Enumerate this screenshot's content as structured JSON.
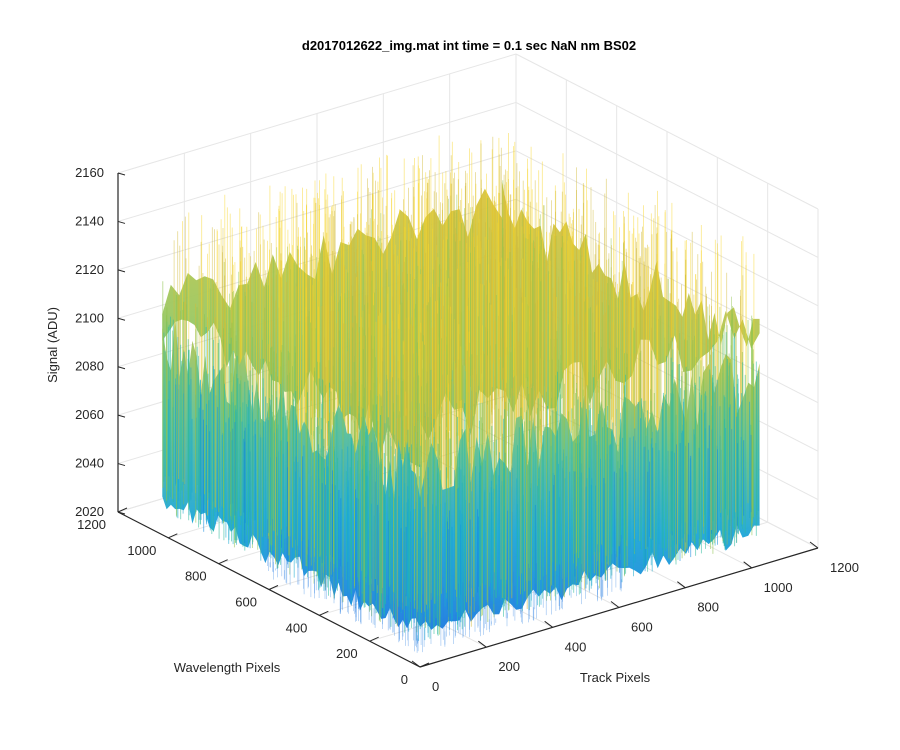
{
  "chart_data": {
    "type": "surface",
    "title": "d2017012622_img.mat int time = 0.1 sec  NaN nm BS02",
    "xlabel": "Track Pixels",
    "ylabel": "Wavelength Pixels",
    "zlabel": "Signal (ADU)",
    "xlim": [
      0,
      1200
    ],
    "ylim": [
      0,
      1200
    ],
    "zlim": [
      2020,
      2160
    ],
    "x_ticks": [
      "0",
      "200",
      "400",
      "600",
      "800",
      "1000",
      "1200"
    ],
    "y_ticks": [
      "0",
      "200",
      "400",
      "600",
      "800",
      "1000",
      "1200"
    ],
    "z_ticks": [
      "2020",
      "2040",
      "2060",
      "2080",
      "2100",
      "2120",
      "2140",
      "2160"
    ],
    "data_extent": {
      "x": [
        0,
        1024
      ],
      "y": [
        0,
        1024
      ]
    },
    "signal_summary": {
      "min": 2030,
      "max": 2155,
      "typical_low": 2050,
      "typical_high": 2125
    },
    "colormap": "parula",
    "grid": true,
    "box": "3d"
  }
}
